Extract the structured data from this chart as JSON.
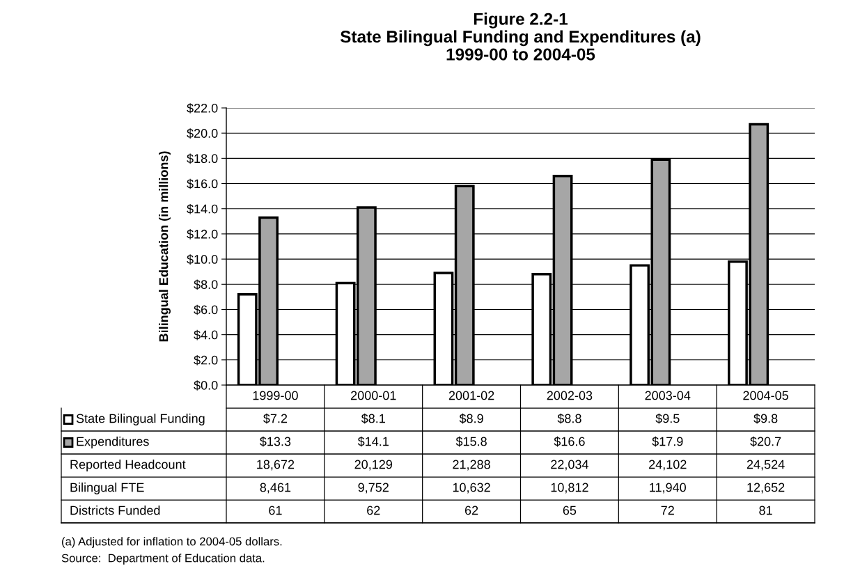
{
  "chart_data": {
    "type": "bar",
    "title": "Figure 2.2-1\nState Bilingual Funding and Expenditures (a)\n1999-00 to 2004-05",
    "ylabel": "Bilingual Education (in millions)",
    "categories": [
      "1999-00",
      "2000-01",
      "2001-02",
      "2002-03",
      "2003-04",
      "2004-05"
    ],
    "series": [
      {
        "name": "State Bilingual Funding",
        "color": "#ffffff",
        "values": [
          7.2,
          8.1,
          8.9,
          8.8,
          9.5,
          9.8
        ],
        "value_labels": [
          "$7.2",
          "$8.1",
          "$8.9",
          "$8.8",
          "$9.5",
          "$9.8"
        ]
      },
      {
        "name": "Expenditures",
        "color": "#a6a6a6",
        "values": [
          13.3,
          14.1,
          15.8,
          16.6,
          17.9,
          20.7
        ],
        "value_labels": [
          "$13.3",
          "$14.1",
          "$15.8",
          "$16.6",
          "$17.9",
          "$20.7"
        ]
      }
    ],
    "ylim": [
      0,
      22
    ],
    "yticks": [
      {
        "value": 0,
        "label": "$0.0"
      },
      {
        "value": 2,
        "label": "$2.0"
      },
      {
        "value": 4,
        "label": "$4.0"
      },
      {
        "value": 6,
        "label": "$6.0"
      },
      {
        "value": 8,
        "label": "$8.0"
      },
      {
        "value": 10,
        "label": "$10.0"
      },
      {
        "value": 12,
        "label": "$12.0"
      },
      {
        "value": 14,
        "label": "$14.0"
      },
      {
        "value": 16,
        "label": "$16.0"
      },
      {
        "value": 18,
        "label": "$18.0"
      },
      {
        "value": 20,
        "label": "$20.0"
      },
      {
        "value": 22,
        "label": "$22.0"
      }
    ],
    "grid": "y",
    "legend": "bottom left",
    "annotations": [
      "Reported Headcount",
      "18,672",
      "20,129",
      "21,288",
      "22,034",
      "24,102",
      "24,524",
      "Bilingual FTE",
      "8,461",
      "9,752",
      "10,632",
      "10,812",
      "11,940",
      "12,652",
      "Districts Funded",
      "61",
      "62",
      "62",
      "65",
      "72",
      "81",
      "(a) Adjusted for inflation to 2004-05 dollars.",
      "Source:  Department of Education data."
    ]
  }
}
